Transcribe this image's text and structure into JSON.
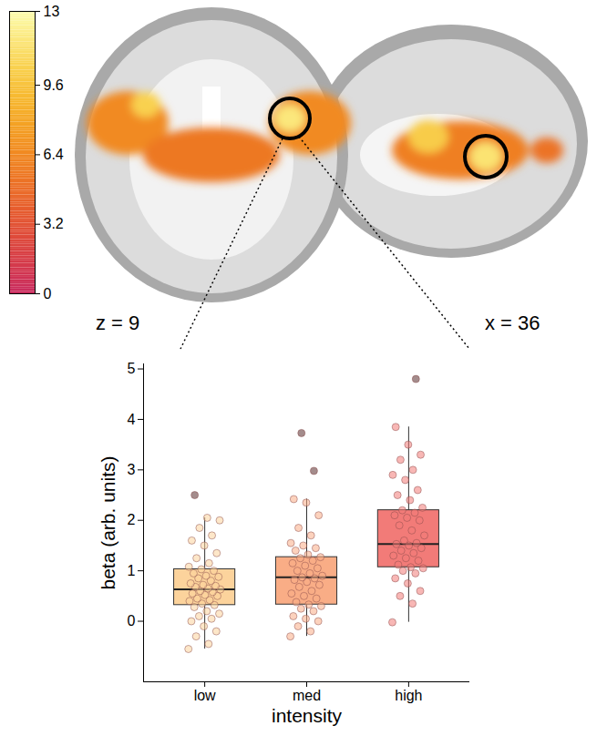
{
  "colorbar": {
    "ylim": [
      0,
      13
    ],
    "yticks": [
      0,
      3.2,
      6.4,
      9.6,
      13
    ]
  },
  "slice_labels": [
    "z = 9",
    "x = 36"
  ],
  "chart_data": {
    "type": "box",
    "x_label": "intensity",
    "y_label": "beta (arb. units)",
    "categories": [
      "low",
      "med",
      "high"
    ],
    "colors": [
      "#fcd39c",
      "#f9ad86",
      "#f27b78"
    ],
    "ylim": [
      -1.2,
      5.1
    ],
    "yticks": [
      0,
      1,
      2,
      3,
      4,
      5
    ],
    "boxes": [
      {
        "q1": 0.32,
        "median": 0.63,
        "q3": 1.03,
        "whisker_low": -0.55,
        "whisker_high": 2.05
      },
      {
        "q1": 0.33,
        "median": 0.87,
        "q3": 1.27,
        "whisker_low": -0.3,
        "whisker_high": 2.42
      },
      {
        "q1": 1.07,
        "median": 1.53,
        "q3": 2.2,
        "whisker_low": -0.02,
        "whisker_high": 3.85
      }
    ],
    "points": [
      [
        -0.55,
        -0.45,
        -0.3,
        -0.2,
        -0.1,
        0.0,
        0.05,
        0.1,
        0.15,
        0.2,
        0.28,
        0.32,
        0.35,
        0.4,
        0.42,
        0.45,
        0.5,
        0.52,
        0.55,
        0.58,
        0.6,
        0.63,
        0.65,
        0.68,
        0.7,
        0.72,
        0.75,
        0.8,
        0.85,
        0.88,
        0.9,
        0.95,
        1.0,
        1.03,
        1.08,
        1.15,
        1.25,
        1.35,
        1.5,
        1.6,
        1.7,
        1.85,
        2.0,
        2.05,
        2.5
      ],
      [
        -0.3,
        -0.2,
        -0.1,
        0.0,
        0.05,
        0.1,
        0.2,
        0.25,
        0.3,
        0.33,
        0.38,
        0.45,
        0.5,
        0.55,
        0.6,
        0.68,
        0.72,
        0.78,
        0.82,
        0.85,
        0.87,
        0.9,
        0.95,
        1.0,
        1.05,
        1.1,
        1.15,
        1.2,
        1.25,
        1.27,
        1.32,
        1.4,
        1.45,
        1.5,
        1.55,
        1.7,
        1.85,
        2.1,
        2.35,
        2.42,
        2.98,
        3.73
      ],
      [
        -0.02,
        0.35,
        0.5,
        0.6,
        0.75,
        0.85,
        0.95,
        1.0,
        1.05,
        1.07,
        1.12,
        1.2,
        1.25,
        1.3,
        1.35,
        1.4,
        1.45,
        1.5,
        1.53,
        1.55,
        1.6,
        1.7,
        1.8,
        1.9,
        2.0,
        2.05,
        2.1,
        2.15,
        2.2,
        2.25,
        2.4,
        2.5,
        2.6,
        2.8,
        2.9,
        3.0,
        3.2,
        3.3,
        3.5,
        3.85,
        4.8
      ]
    ]
  }
}
